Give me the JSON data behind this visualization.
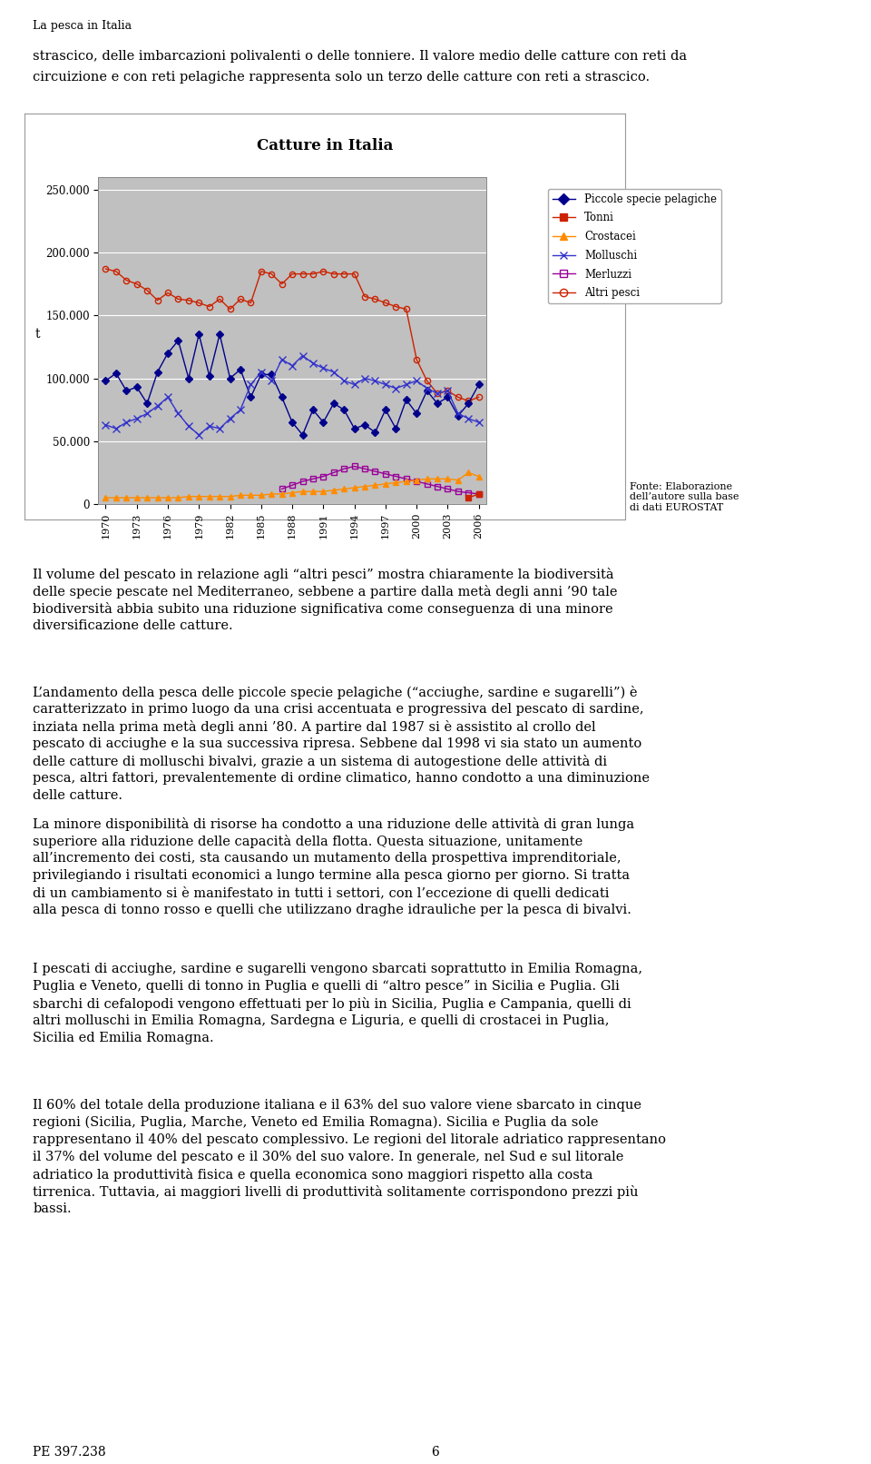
{
  "title": "Catture in Italia",
  "ylabel": "t",
  "years": [
    1970,
    1971,
    1972,
    1973,
    1974,
    1975,
    1976,
    1977,
    1978,
    1979,
    1980,
    1981,
    1982,
    1983,
    1984,
    1985,
    1986,
    1987,
    1988,
    1989,
    1990,
    1991,
    1992,
    1993,
    1994,
    1995,
    1996,
    1997,
    1998,
    1999,
    2000,
    2001,
    2002,
    2003,
    2004,
    2005,
    2006
  ],
  "piccole_specie_pelagiche": [
    98000,
    104000,
    90000,
    93000,
    80000,
    105000,
    120000,
    130000,
    100000,
    135000,
    102000,
    135000,
    100000,
    107000,
    85000,
    103000,
    103000,
    85000,
    65000,
    55000,
    75000,
    65000,
    80000,
    75000,
    60000,
    63000,
    57000,
    75000,
    60000,
    83000,
    72000,
    90000,
    80000,
    85000,
    70000,
    80000,
    95000
  ],
  "tonni": [
    null,
    null,
    null,
    null,
    null,
    null,
    null,
    null,
    null,
    null,
    null,
    null,
    null,
    null,
    null,
    null,
    null,
    null,
    null,
    null,
    null,
    null,
    null,
    null,
    null,
    null,
    null,
    null,
    null,
    null,
    null,
    null,
    null,
    null,
    null,
    5000,
    8000
  ],
  "crostacei": [
    5000,
    5000,
    5000,
    5000,
    5000,
    5000,
    5000,
    5000,
    6000,
    6000,
    6000,
    6000,
    6000,
    7000,
    7000,
    7000,
    8000,
    8000,
    9000,
    10000,
    10000,
    10000,
    11000,
    12000,
    13000,
    14000,
    15000,
    16000,
    17000,
    18000,
    19000,
    20000,
    20000,
    20000,
    19000,
    25000,
    22000
  ],
  "molluschi": [
    63000,
    60000,
    65000,
    68000,
    72000,
    78000,
    85000,
    72000,
    62000,
    55000,
    62000,
    60000,
    68000,
    75000,
    95000,
    105000,
    98000,
    115000,
    110000,
    118000,
    112000,
    108000,
    105000,
    98000,
    95000,
    100000,
    98000,
    95000,
    92000,
    95000,
    98000,
    92000,
    88000,
    90000,
    72000,
    68000,
    65000
  ],
  "merluzzi": [
    null,
    null,
    null,
    null,
    null,
    null,
    null,
    null,
    null,
    null,
    null,
    null,
    null,
    null,
    null,
    null,
    null,
    12000,
    15000,
    18000,
    20000,
    22000,
    25000,
    28000,
    30000,
    28000,
    26000,
    24000,
    22000,
    20000,
    18000,
    16000,
    14000,
    12000,
    10000,
    9000,
    8000
  ],
  "altri_pesci": [
    187000,
    185000,
    178000,
    175000,
    170000,
    162000,
    168000,
    163000,
    162000,
    160000,
    157000,
    163000,
    155000,
    163000,
    160000,
    185000,
    183000,
    175000,
    183000,
    183000,
    183000,
    185000,
    183000,
    183000,
    183000,
    165000,
    163000,
    160000,
    157000,
    155000,
    115000,
    98000,
    88000,
    90000,
    85000,
    82000,
    85000
  ],
  "ylim": [
    0,
    260000
  ],
  "yticks": [
    0,
    50000,
    100000,
    150000,
    200000,
    250000
  ],
  "ytick_labels": [
    "0",
    "50.000",
    "100.000",
    "150.000",
    "200.000",
    "250.000"
  ],
  "xtick_years": [
    1970,
    1973,
    1976,
    1979,
    1982,
    1985,
    1988,
    1991,
    1994,
    1997,
    2000,
    2003,
    2006
  ],
  "fonte_text": "Fonte: Elaborazione\ndell’autore sulla base\ndi dati EUROSTAT",
  "page_bg": "#ffffff",
  "chart_frame_bg": "#ffffff",
  "plot_bg_color": "#c0c0c0",
  "grid_color": "#ffffff",
  "line_piccole_color": "#00008B",
  "line_tonni_color": "#cc2200",
  "line_crostacei_color": "#ff8c00",
  "line_molluschi_color": "#3333cc",
  "line_merluzzi_color": "#990099",
  "line_altri_color": "#cc2200",
  "legend_labels": [
    "Piccole specie pelagiche",
    "Tonni",
    "Crostacei",
    "Molluschi",
    "Merluzzi",
    "Altri pesci"
  ],
  "header_line1": "La pesca in Italia",
  "top_para_line1": "strascico, delle imbarcazioni polivalenti o delle tonniere. Il valore medio delle catture con reti da",
  "top_para_line2": "circuizione e con reti pelagiche rappresenta solo un terzo delle catture con reti a strascico.",
  "para1": "Il volume del pescato in relazione agli “altri pesci” mostra chiaramente la biodiversità delle specie pescate nel Mediterraneo, sebbene a partire dalla metà degli anni ’90 tale biodiversità abbia subito una riduzione significativa come conseguenza di una minore diversificazione delle catture.",
  "para2": "L’andamento della pesca delle piccole specie pelagiche (“acciughe, sardine e sugarelli”) è caratterizzato in primo luogo da una crisi accentuata e progressiva del pescato di sardine, inziata nella prima metà degli anni ’80. A partire dal 1987 si è assistito al crollo del pescato di acciughe e la sua successiva ripresa. Sebbene dal 1998 vi sia stato un aumento delle catture di molluschi bivalvi, grazie a un sistema di autogestione delle attività di pesca, altri fattori, prevalentemente di ordine climatico, hanno condotto a una diminuzione delle catture.",
  "para3": "La minore disponibilità di risorse ha condotto a una riduzione delle attività di gran lunga superiore alla riduzione delle capacità della flotta. Questa situazione, unitamente all’incremento dei costi, sta causando un mutamento della prospettiva imprenditoriale, privilegiando i risultati economici a lungo termine alla pesca giorno per giorno. Si tratta di un cambiamento si è manifestato in tutti i settori, con l’eccezione di quelli dedicati alla pesca di tonno rosso e quelli che utilizzano draghe idrauliche per la pesca di bivalvi.",
  "para4": "I pescati di acciughe, sardine e sugarelli vengono sbarcati soprattutto in Emilia Romagna, Puglia e Veneto, quelli di tonno in Puglia e quelli di “altro pesce” in Sicilia e Puglia. Gli sbarchi di cefalopodi vengono effettuati per lo più in Sicilia, Puglia e Campania, quelli di altri molluschi in Emilia Romagna, Sardegna e Liguria, e quelli di crostacei in Puglia, Sicilia ed Emilia Romagna.",
  "para5": "Il 60% del totale della produzione italiana e il 63% del suo valore viene sbarcato in cinque regioni (Sicilia, Puglia, Marche, Veneto ed Emilia Romagna). Sicilia e Puglia da sole rappresentano il 40% del pescato complessivo. Le regioni del litorale adriatico rappresentano il 37% del volume del pescato e il 30% del suo valore. In generale, nel Sud e sul litorale adriatico la produttività fisica e quella economica sono maggiori rispetto alla costa tirrenica. Tuttavia, ai maggiori livelli di produttività solitamente corrispondono prezzi più bassi.",
  "footer_left": "PE 397.238",
  "footer_center": "6"
}
